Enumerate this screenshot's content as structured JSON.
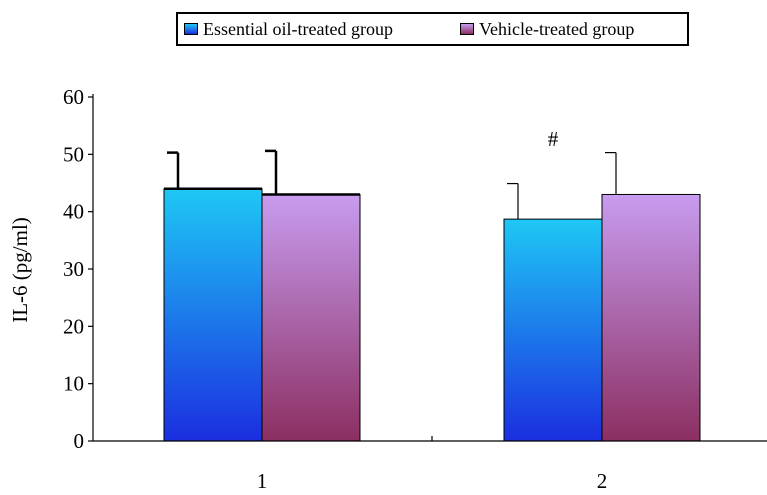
{
  "chart_data": {
    "type": "bar",
    "title": "",
    "xlabel": "",
    "ylabel": "IL-6 (pg/ml)",
    "ylim": [
      0,
      60
    ],
    "yticks": [
      0,
      10,
      20,
      30,
      40,
      50,
      60
    ],
    "categories": [
      "1",
      "2"
    ],
    "legend_position": "top",
    "grid": false,
    "series": [
      {
        "name": "Essential oil-treated group",
        "values": [
          44,
          38.7
        ],
        "errors": [
          6.3,
          6.2
        ],
        "color_top": "#1ec8f5",
        "color_bottom": "#1b2ee0"
      },
      {
        "name": "Vehicle-treated group",
        "values": [
          43,
          43
        ],
        "errors": [
          7.6,
          7.3
        ],
        "color_top": "#c89cf0",
        "color_bottom": "#8c2f62"
      }
    ],
    "annotations": [
      {
        "category_index": 1,
        "series_index": 0,
        "text": "#"
      }
    ]
  }
}
